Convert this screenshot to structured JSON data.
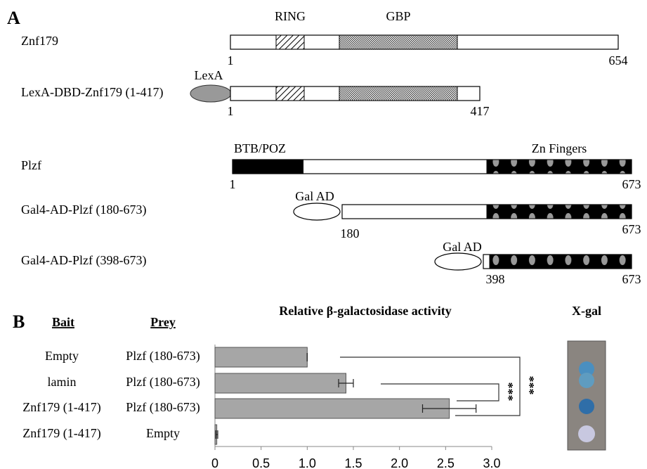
{
  "panel_a": {
    "label": "A",
    "domains": {
      "ring": "RING",
      "gbp": "GBP",
      "lexa": "LexA",
      "btb": "BTB/POZ",
      "zn": "Zn Fingers",
      "galad_1": "Gal AD",
      "galad_2": "Gal AD"
    },
    "constructs": [
      {
        "name": "Znf179",
        "start": 1,
        "end": 654
      },
      {
        "name": "LexA-DBD-Znf179  (1-417)",
        "start": 1,
        "end": 417
      },
      {
        "name": "Plzf",
        "start": 1,
        "end": 673
      },
      {
        "name": "Gal4-AD-Plzf  (180-673)",
        "start": 180,
        "end": 673
      },
      {
        "name": "Gal4-AD-Plzf  (398-673)",
        "start": 398,
        "end": 673
      }
    ]
  },
  "panel_b": {
    "label": "B",
    "bait_header": "Bait",
    "prey_header": "Prey",
    "xgal_title": "X-gal"
  },
  "chart_data": {
    "type": "bar",
    "orientation": "horizontal",
    "title": "Relative β-galactosidase activity",
    "categories": [
      "Empty",
      "lamin",
      "Znf179 (1-417)",
      "Znf179 (1-417)"
    ],
    "prey": [
      "Plzf (180-673)",
      "Plzf (180-673)",
      "Plzf (180-673)",
      "Empty"
    ],
    "values": [
      1.0,
      1.42,
      2.54,
      0.02
    ],
    "errors": [
      0,
      0.08,
      0.29,
      0.01
    ],
    "color": "#a6a6a6",
    "xlim": [
      0,
      3.0
    ],
    "xticks": [
      0,
      0.5,
      {
        "value": 1,
        "label": "1.0"
      },
      1.5,
      {
        "value": 2,
        "label": "2.0"
      },
      2.5,
      {
        "value": 3,
        "label": "3.0"
      }
    ],
    "annotations": [
      "***",
      "***"
    ]
  }
}
